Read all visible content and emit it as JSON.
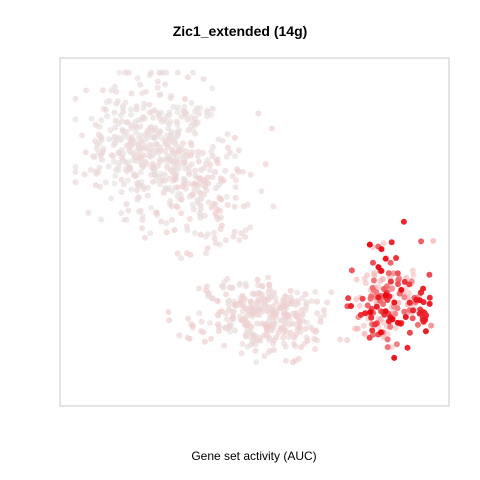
{
  "chart_data": {
    "type": "scatter",
    "title": "Zic1_extended (14g)",
    "xlabel": "Gene set activity (AUC)",
    "ylabel": "",
    "grid": false,
    "legend": "none",
    "axes_visible": false,
    "colors": {
      "low": "#e6e6e6",
      "mid": "#f6c1c1",
      "high": "#e8000b"
    },
    "color_scale": "AUC low (grey) to high (red)",
    "clusters": [
      {
        "center": [
          0.22,
          0.76
        ],
        "spread": [
          0.14,
          0.16
        ],
        "count": 420,
        "auc": [
          0.02,
          0.22
        ]
      },
      {
        "center": [
          0.36,
          0.62
        ],
        "spread": [
          0.1,
          0.2
        ],
        "count": 160,
        "auc": [
          0.05,
          0.35
        ]
      },
      {
        "center": [
          0.52,
          0.25
        ],
        "spread": [
          0.15,
          0.09
        ],
        "count": 320,
        "auc": [
          0.05,
          0.35
        ]
      },
      {
        "center": [
          0.86,
          0.3
        ],
        "spread": [
          0.08,
          0.12
        ],
        "count": 180,
        "auc": [
          0.35,
          1.0
        ]
      },
      {
        "center": [
          0.95,
          0.26
        ],
        "spread": [
          0.02,
          0.05
        ],
        "count": 20,
        "auc": [
          0.85,
          1.0
        ]
      }
    ]
  }
}
